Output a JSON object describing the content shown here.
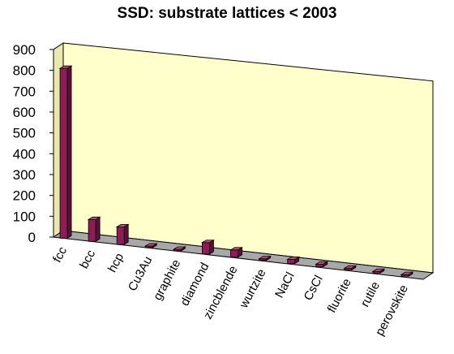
{
  "chart_data": {
    "type": "bar",
    "title": "SSD:  substrate lattices < 2003",
    "xlabel": "",
    "ylabel": "",
    "ylim": [
      0,
      900
    ],
    "yticks": [
      0,
      100,
      200,
      300,
      400,
      500,
      600,
      700,
      800,
      900
    ],
    "grid": false,
    "legend": "none",
    "categories": [
      "fcc",
      "bcc",
      "hcp",
      "Cu3Au",
      "graphite",
      "diamond",
      "zincblende",
      "wurtzite",
      "NaCl",
      "CsCl",
      "fluorite",
      "rutile",
      "perovskite"
    ],
    "values": [
      815,
      105,
      85,
      2,
      2,
      55,
      35,
      4,
      20,
      12,
      8,
      6,
      3
    ],
    "colors": {
      "bar_front": "#8b1e55",
      "bar_side": "#5c0f38",
      "bar_top": "#c0507e",
      "back_wall": "#ffffcc",
      "floor": "#a8a8a8"
    }
  }
}
